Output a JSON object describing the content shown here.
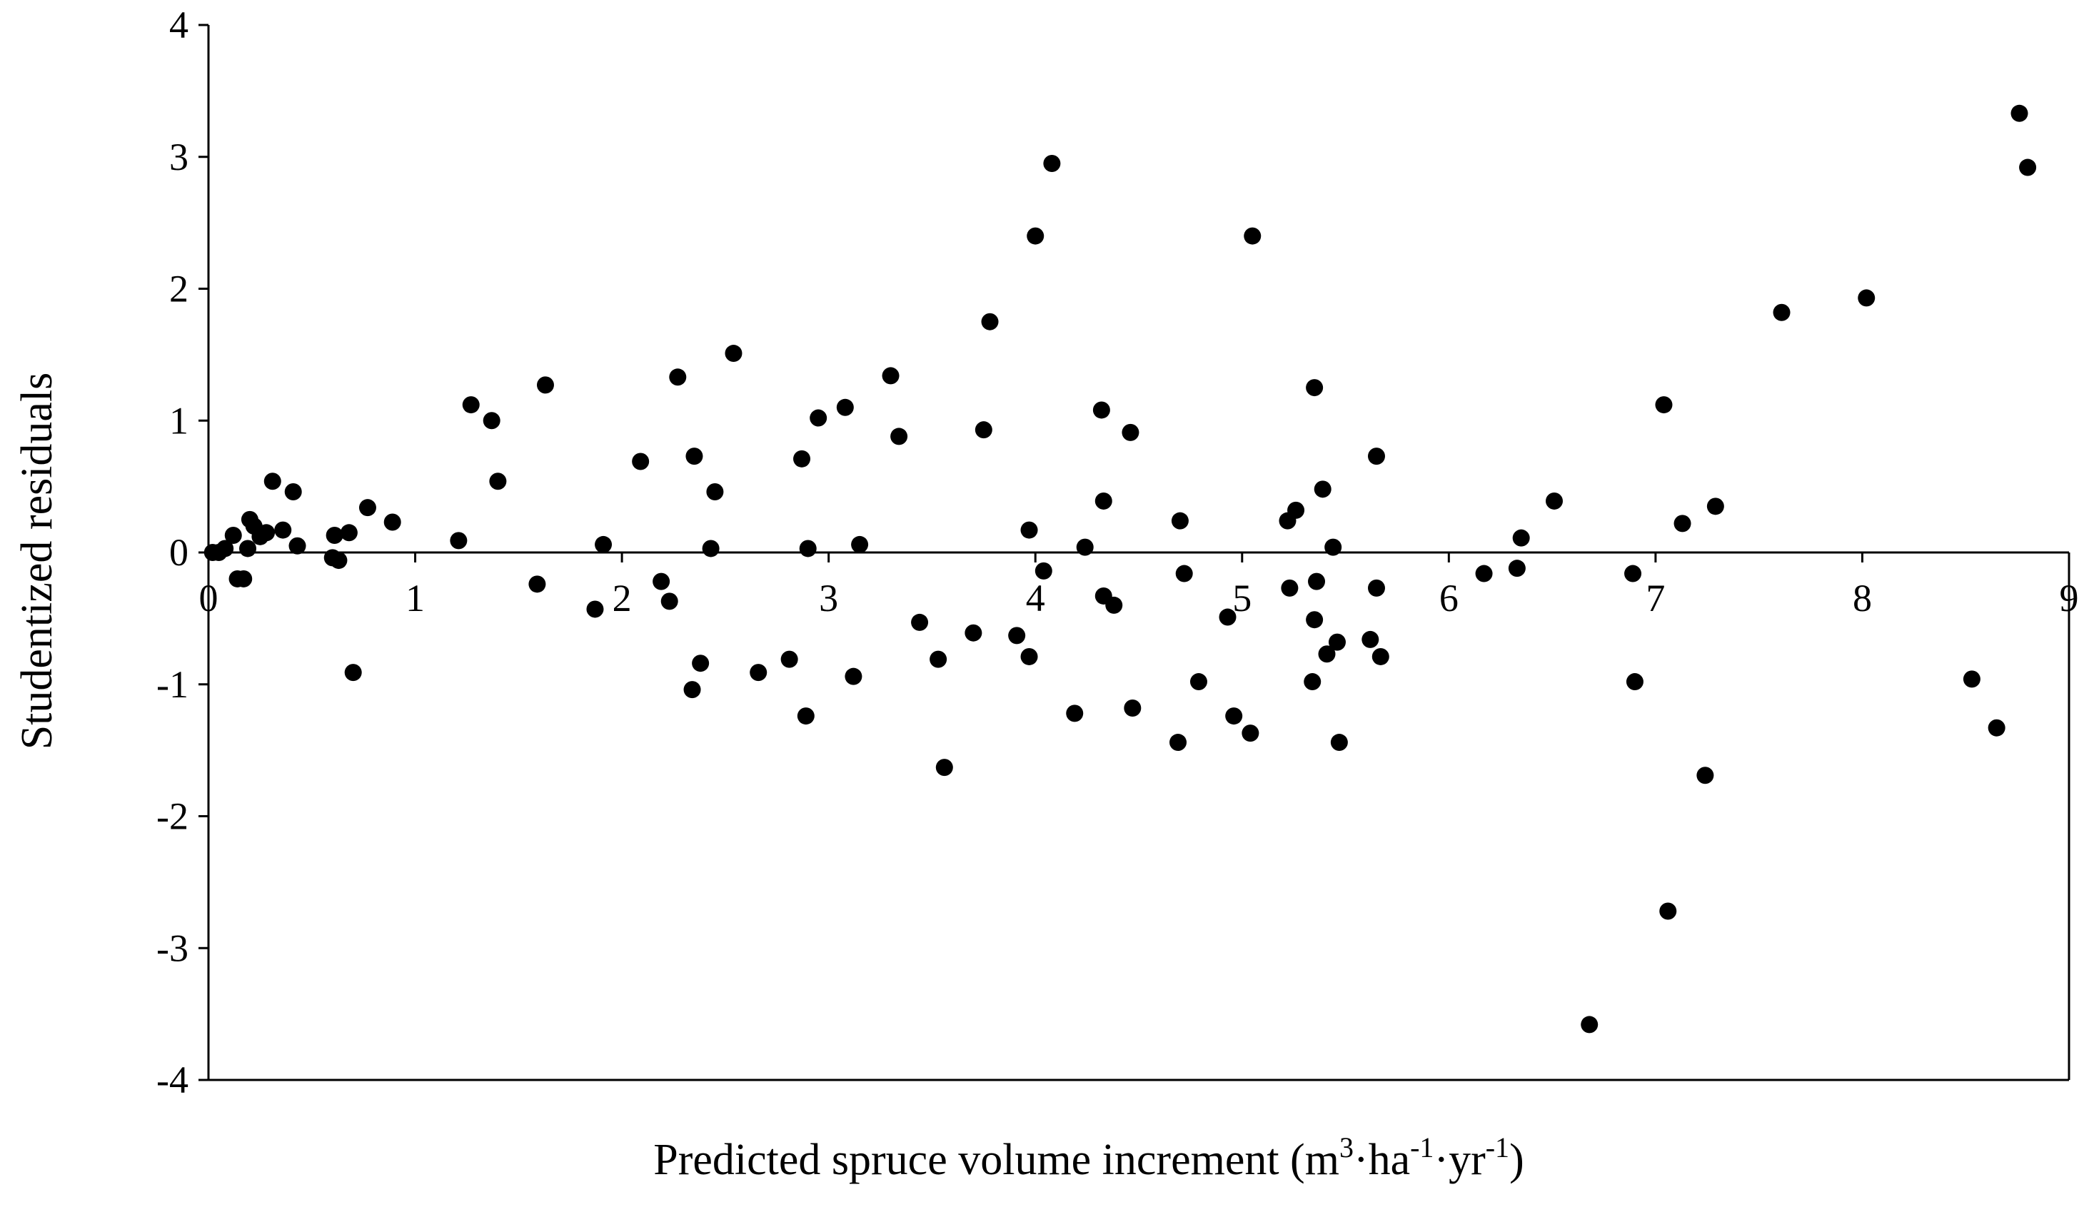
{
  "chart_data": {
    "type": "scatter",
    "title": "",
    "xlabel": "Predicted spruce volume increment (m3·ha-1·yr-1)",
    "xlabel_parts": [
      "Predicted spruce volume increment (m",
      "3",
      "·ha",
      "-1",
      "·yr",
      "-1",
      ")"
    ],
    "ylabel": "Studentized residuals",
    "xlim": [
      0,
      9
    ],
    "ylim": [
      -4,
      4
    ],
    "xticks": [
      "0",
      "1",
      "2",
      "3",
      "4",
      "5",
      "6",
      "7",
      "8",
      "9"
    ],
    "yticks": [
      "-4",
      "-3",
      "-2",
      "-1",
      "0",
      "1",
      "2",
      "3",
      "4"
    ],
    "grid": false,
    "legend": "none",
    "marker_color": "#000000",
    "points": [
      [
        0.02,
        0.0
      ],
      [
        0.05,
        0.0
      ],
      [
        0.08,
        0.03
      ],
      [
        0.12,
        0.13
      ],
      [
        0.14,
        -0.2
      ],
      [
        0.17,
        -0.2
      ],
      [
        0.19,
        0.03
      ],
      [
        0.2,
        0.25
      ],
      [
        0.22,
        0.2
      ],
      [
        0.25,
        0.12
      ],
      [
        0.28,
        0.15
      ],
      [
        0.31,
        0.54
      ],
      [
        0.36,
        0.17
      ],
      [
        0.41,
        0.46
      ],
      [
        0.43,
        0.05
      ],
      [
        0.6,
        -0.04
      ],
      [
        0.61,
        0.13
      ],
      [
        0.63,
        -0.06
      ],
      [
        0.68,
        0.15
      ],
      [
        0.7,
        -0.91
      ],
      [
        0.77,
        0.34
      ],
      [
        0.89,
        0.23
      ],
      [
        1.21,
        0.09
      ],
      [
        1.27,
        1.12
      ],
      [
        1.37,
        1.0
      ],
      [
        1.4,
        0.54
      ],
      [
        1.59,
        -0.24
      ],
      [
        1.63,
        1.27
      ],
      [
        1.87,
        -0.43
      ],
      [
        1.91,
        0.06
      ],
      [
        2.09,
        0.69
      ],
      [
        2.19,
        -0.22
      ],
      [
        2.23,
        -0.37
      ],
      [
        2.27,
        1.33
      ],
      [
        2.35,
        0.73
      ],
      [
        2.34,
        -1.04
      ],
      [
        2.38,
        -0.84
      ],
      [
        2.43,
        0.03
      ],
      [
        2.45,
        0.46
      ],
      [
        2.54,
        1.51
      ],
      [
        2.66,
        -0.91
      ],
      [
        2.81,
        -0.81
      ],
      [
        2.87,
        0.71
      ],
      [
        2.89,
        -1.24
      ],
      [
        2.9,
        0.03
      ],
      [
        2.95,
        1.02
      ],
      [
        3.08,
        1.1
      ],
      [
        3.12,
        -0.94
      ],
      [
        3.15,
        0.06
      ],
      [
        3.3,
        1.34
      ],
      [
        3.34,
        0.88
      ],
      [
        3.44,
        -0.53
      ],
      [
        3.53,
        -0.81
      ],
      [
        3.56,
        -1.63
      ],
      [
        3.7,
        -0.61
      ],
      [
        3.75,
        0.93
      ],
      [
        3.78,
        1.75
      ],
      [
        3.91,
        -0.63
      ],
      [
        3.97,
        0.17
      ],
      [
        3.97,
        -0.79
      ],
      [
        4.0,
        2.4
      ],
      [
        4.04,
        -0.14
      ],
      [
        4.08,
        2.95
      ],
      [
        4.19,
        -1.22
      ],
      [
        4.24,
        0.04
      ],
      [
        4.32,
        1.08
      ],
      [
        4.33,
        0.39
      ],
      [
        4.33,
        -0.33
      ],
      [
        4.38,
        -0.4
      ],
      [
        4.46,
        0.91
      ],
      [
        4.47,
        -1.18
      ],
      [
        4.69,
        -1.44
      ],
      [
        4.7,
        0.24
      ],
      [
        4.72,
        -0.16
      ],
      [
        4.79,
        -0.98
      ],
      [
        4.93,
        -0.49
      ],
      [
        4.96,
        -1.24
      ],
      [
        5.04,
        -1.37
      ],
      [
        5.05,
        2.4
      ],
      [
        5.22,
        0.24
      ],
      [
        5.23,
        -0.27
      ],
      [
        5.26,
        0.32
      ],
      [
        5.34,
        -0.98
      ],
      [
        5.35,
        1.25
      ],
      [
        5.35,
        -0.51
      ],
      [
        5.36,
        -0.22
      ],
      [
        5.39,
        0.48
      ],
      [
        5.41,
        -0.77
      ],
      [
        5.44,
        0.04
      ],
      [
        5.46,
        -0.68
      ],
      [
        5.47,
        -1.44
      ],
      [
        5.62,
        -0.66
      ],
      [
        5.65,
        0.73
      ],
      [
        5.65,
        -0.27
      ],
      [
        5.67,
        -0.79
      ],
      [
        6.17,
        -0.16
      ],
      [
        6.33,
        -0.12
      ],
      [
        6.35,
        0.11
      ],
      [
        6.51,
        0.39
      ],
      [
        6.68,
        -3.58
      ],
      [
        6.89,
        -0.16
      ],
      [
        6.9,
        -0.98
      ],
      [
        7.04,
        1.12
      ],
      [
        7.06,
        -2.72
      ],
      [
        7.13,
        0.22
      ],
      [
        7.24,
        -1.69
      ],
      [
        7.29,
        0.35
      ],
      [
        7.61,
        1.82
      ],
      [
        8.02,
        1.93
      ],
      [
        8.53,
        -0.96
      ],
      [
        8.65,
        -1.33
      ],
      [
        8.76,
        3.33
      ],
      [
        8.8,
        2.92
      ]
    ]
  }
}
